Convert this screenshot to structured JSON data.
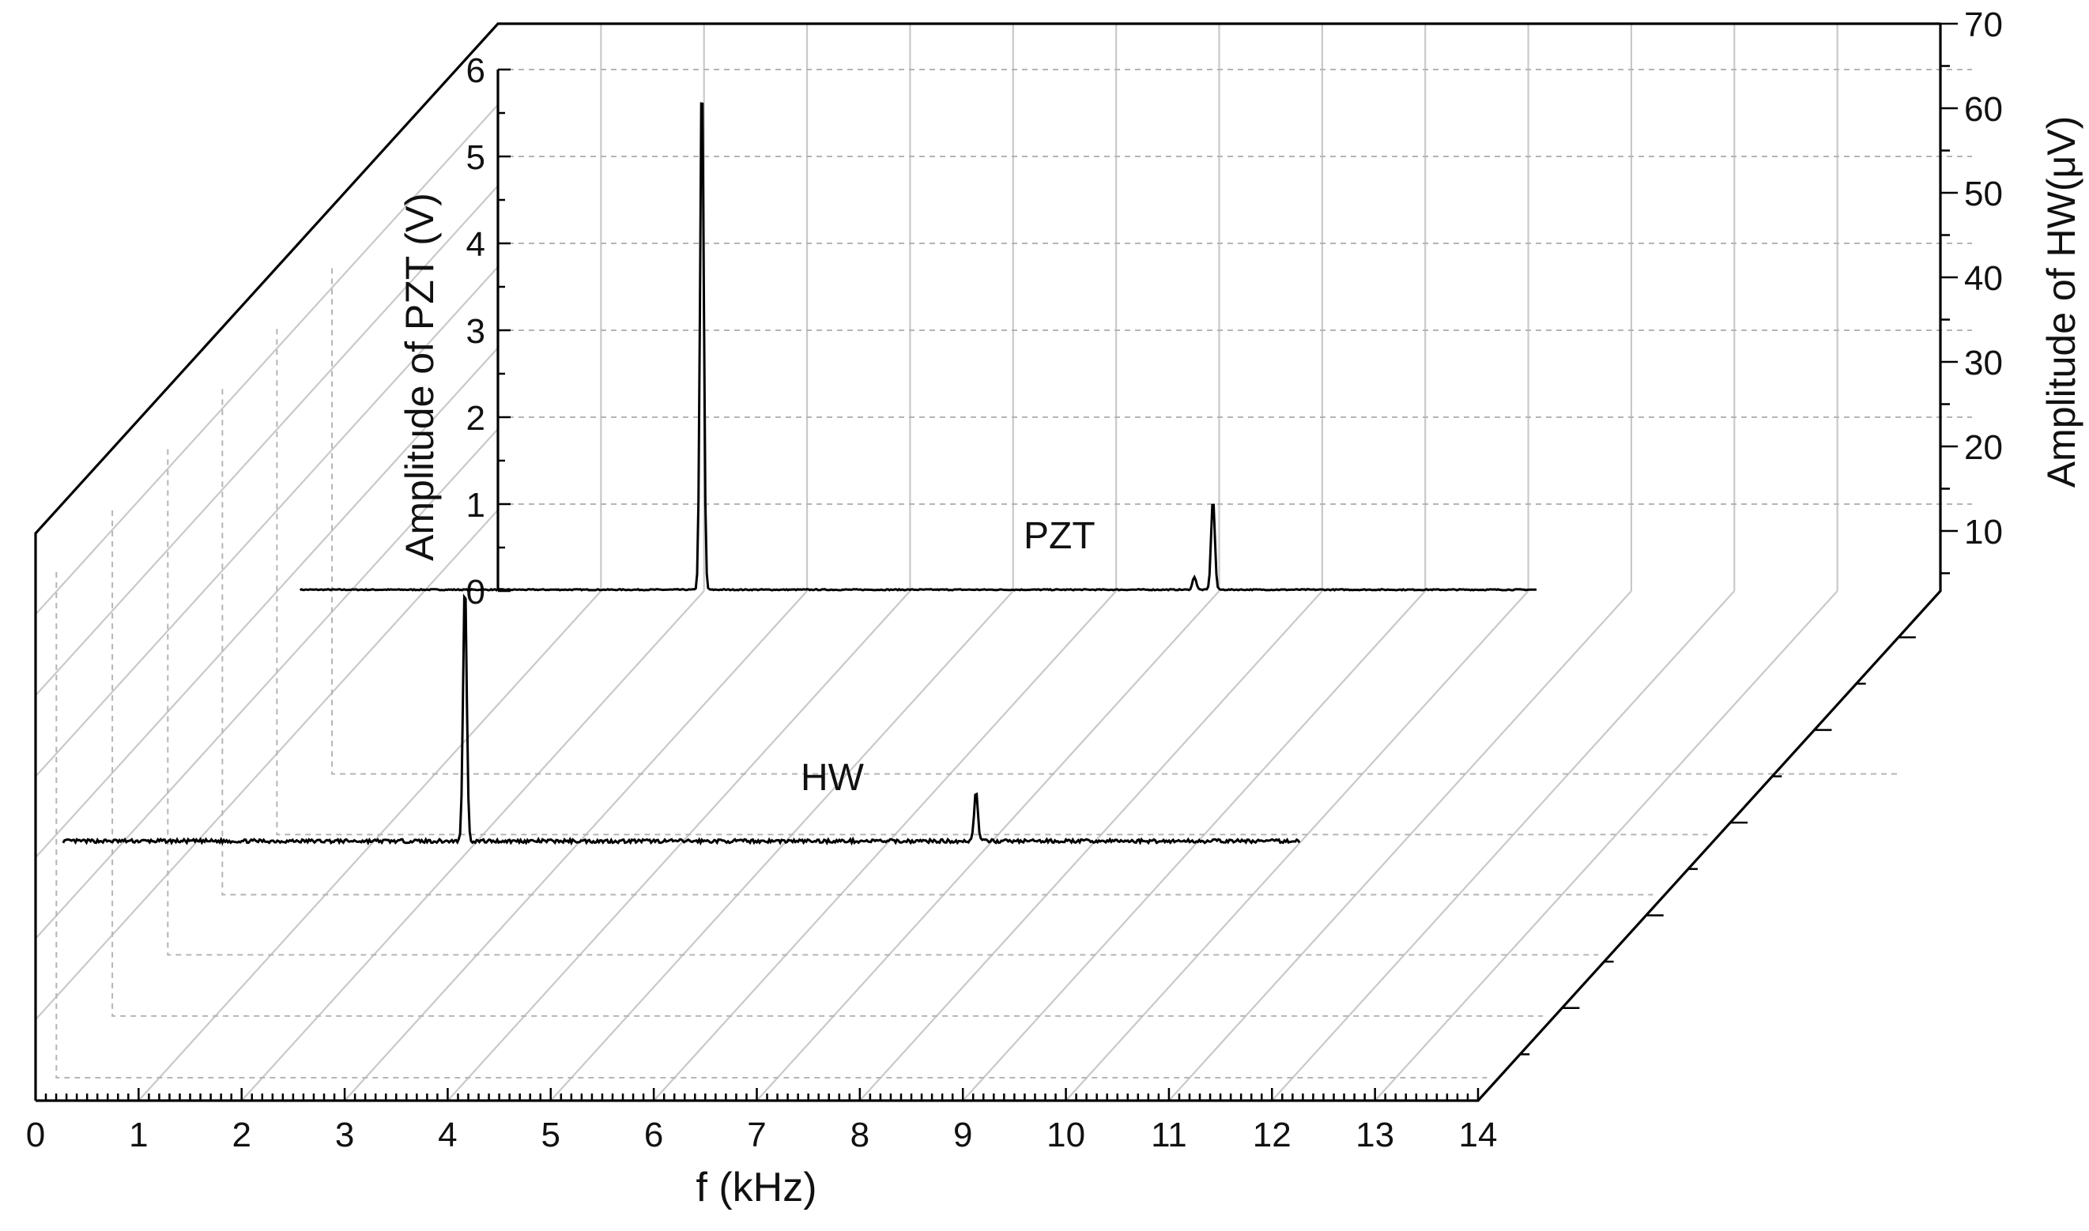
{
  "chart_data": {
    "type": "line",
    "layout": "3d-waterfall",
    "x_axis": {
      "label": "f (kHz)",
      "range": [
        0,
        14
      ],
      "ticks": [
        "0",
        "1",
        "2",
        "3",
        "4",
        "5",
        "6",
        "7",
        "8",
        "9",
        "10",
        "11",
        "12",
        "13",
        "14"
      ]
    },
    "y_axis_left": {
      "label": "Amplitude of PZT (V)",
      "range": [
        0,
        6.3
      ],
      "ticks": [
        "0",
        "1",
        "2",
        "3",
        "4",
        "5",
        "6"
      ]
    },
    "y_axis_right": {
      "label": "Amplitude of HW(μV)",
      "range": [
        0,
        70
      ],
      "ticks": [
        "10",
        "20",
        "30",
        "40",
        "50",
        "60",
        "70"
      ]
    },
    "grid": true,
    "series": [
      {
        "name": "PZT",
        "label": "PZT",
        "depth": "back",
        "x_range": [
          0.5,
          12.5
        ],
        "peaks": [
          {
            "f": 4.4,
            "amplitude": 6.0
          },
          {
            "f": 9.36,
            "amplitude": 1.05
          },
          {
            "f": 9.18,
            "amplitude": 0.15
          }
        ],
        "baseline": 0.03
      },
      {
        "name": "HW",
        "label": "HW",
        "depth": "front",
        "x_range": [
          0.5,
          12.5
        ],
        "peaks": [
          {
            "f": 4.4,
            "amplitude": 3.0
          },
          {
            "f": 9.36,
            "amplitude": 0.58
          }
        ],
        "baseline": 0.05
      }
    ]
  }
}
